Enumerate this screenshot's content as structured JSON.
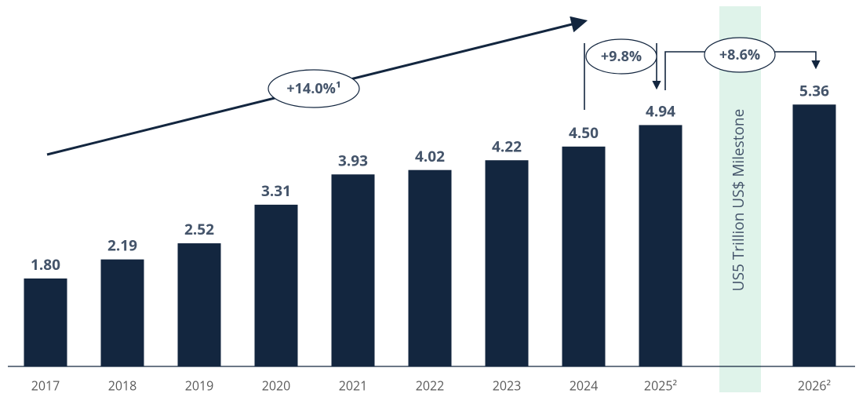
{
  "chart_data": {
    "type": "bar",
    "categories": [
      "2017",
      "2018",
      "2019",
      "2020",
      "2021",
      "2022",
      "2023",
      "2024",
      "2025²",
      null,
      "2026²"
    ],
    "values": [
      1.8,
      2.19,
      2.52,
      3.31,
      3.93,
      4.02,
      4.22,
      4.5,
      4.94,
      null,
      5.36
    ],
    "value_labels": [
      "1.80",
      "2.19",
      "2.52",
      "3.31",
      "3.93",
      "4.02",
      "4.22",
      "4.50",
      "4.94",
      null,
      "5.36"
    ],
    "color": "#13263f",
    "ylim": [
      0,
      7.5
    ],
    "annotations": [
      "+14.0%¹",
      "+9.8%",
      "+8.6%",
      "US5 Trillion US$ Milestone"
    ]
  }
}
